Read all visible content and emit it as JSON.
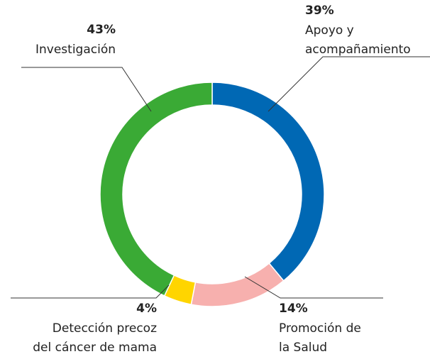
{
  "chart_data": {
    "type": "donut",
    "categories": [
      "Apoyo y\nacompañamiento",
      "Promoción de\nla Salud",
      "Detección precoz\ndel cáncer de mama",
      "Investigación"
    ],
    "values": [
      39,
      14,
      4,
      43
    ],
    "value_labels": [
      "39%",
      "14%",
      "4%",
      "43%"
    ],
    "colors": [
      "#0068b4",
      "#f7b0ae",
      "#ffd500",
      "#3aaa35"
    ]
  }
}
